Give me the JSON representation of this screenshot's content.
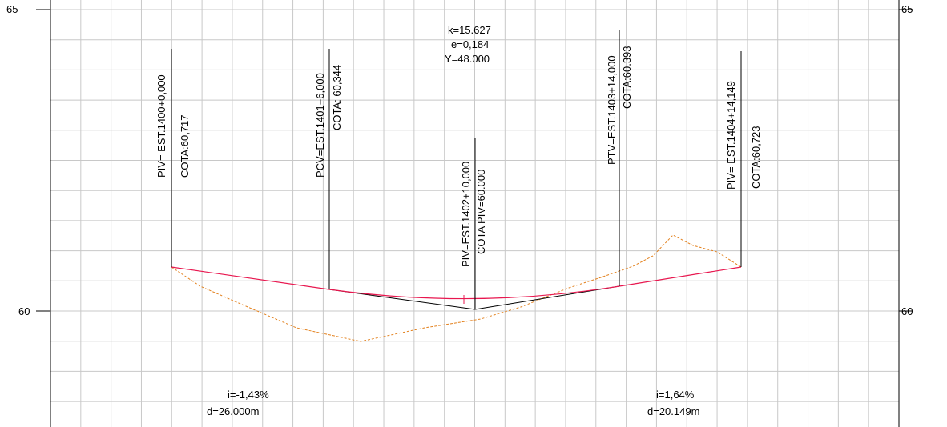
{
  "axis": {
    "y_top_left": "65",
    "y_top_right": "65",
    "y_mid_left": "60",
    "y_mid_right": "60"
  },
  "curve_params": {
    "k": "k=15.627",
    "e": "e=0,184",
    "y": "Y=48.000"
  },
  "stations": {
    "piv1": {
      "est": "PIV= EST.1400+0,000",
      "cota": "COTA:60,717"
    },
    "pcv": {
      "est": "PCV=EST.1401+6,000",
      "cota": "COTA: 60,344"
    },
    "piv2": {
      "est": "PIV=EST.1402+10,000",
      "cota": "COTA PIV=60.000"
    },
    "ptv": {
      "est": "PTV=EST.1403+14,000",
      "cota": "COTA:60.393"
    },
    "piv3": {
      "est": "PIV= EST.1404+14,149",
      "cota": "COTA:60,723"
    }
  },
  "grades": {
    "left": {
      "i": "i=-1,43%",
      "d": "d=26.000m"
    },
    "right": {
      "i": "i=1,64%",
      "d": "d=20.149m"
    }
  },
  "colors": {
    "grid": "#c8c8c8",
    "rasante": "#e8174f",
    "terrain": "#e3821f",
    "tangent": "#000000"
  }
}
